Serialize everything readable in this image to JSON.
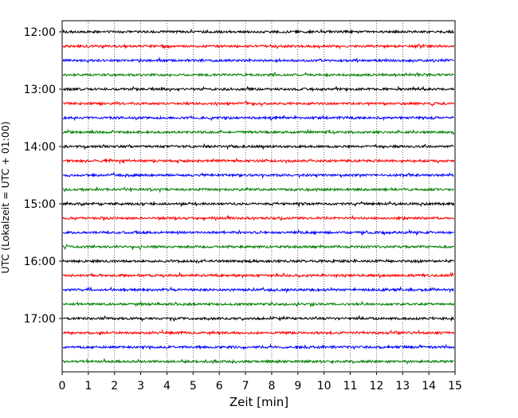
{
  "chart_data": {
    "type": "line",
    "title": "",
    "xlabel": "Zeit  [min]",
    "ylabel": "UTC (Lokalzeit = UTC + 01:00)",
    "xlim": [
      0,
      15
    ],
    "x_ticks": [
      "0",
      "1",
      "2",
      "3",
      "4",
      "5",
      "6",
      "7",
      "8",
      "9",
      "10",
      "11",
      "12",
      "13",
      "14",
      "15"
    ],
    "y_ticks": [
      "12:00",
      "13:00",
      "14:00",
      "15:00",
      "16:00",
      "17:00"
    ],
    "grid": {
      "x": true,
      "y": false
    },
    "rows_per_hour": 4,
    "row_start_times": [
      "12:00",
      "12:15",
      "12:30",
      "12:45",
      "13:00",
      "13:15",
      "13:30",
      "13:45",
      "14:00",
      "14:15",
      "14:30",
      "14:45",
      "15:00",
      "15:15",
      "15:30",
      "15:45",
      "16:00",
      "16:15",
      "16:30",
      "16:45",
      "17:00",
      "17:15",
      "17:30",
      "17:45"
    ],
    "colors": [
      "#000000",
      "#ff0000",
      "#0000ff",
      "#008000"
    ]
  }
}
